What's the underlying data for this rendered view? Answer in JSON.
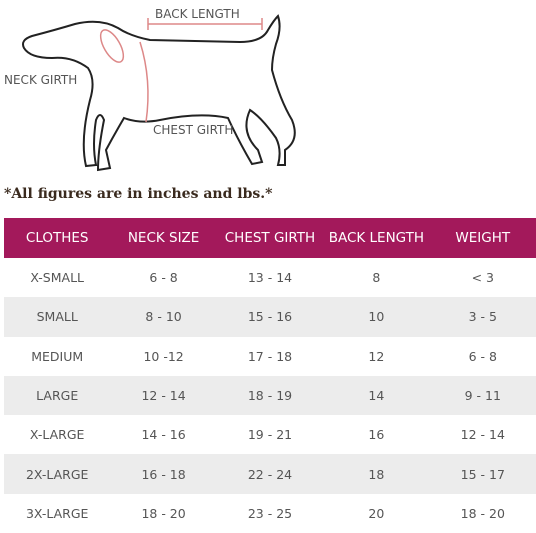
{
  "diagram": {
    "labels": {
      "back_length": "BACK LENGTH",
      "neck_girth": "NECK GIRTH",
      "chest_girth": "CHEST GIRTH"
    }
  },
  "note": "*All figures are in inches and lbs.*",
  "table": {
    "header": [
      "CLOTHES",
      "NECK SIZE",
      "CHEST GIRTH",
      "BACK LENGTH",
      "WEIGHT"
    ],
    "rows": [
      [
        "X-SMALL",
        "6 - 8",
        "13 - 14",
        "8",
        "< 3"
      ],
      [
        "SMALL",
        "8 - 10",
        "15 - 16",
        "10",
        "3 - 5"
      ],
      [
        "MEDIUM",
        "10 -12",
        "17 - 18",
        "12",
        "6 - 8"
      ],
      [
        "LARGE",
        "12 - 14",
        "18 - 19",
        "14",
        "9 - 11"
      ],
      [
        "X-LARGE",
        "14 - 16",
        "19 - 21",
        "16",
        "12 - 14"
      ],
      [
        "2X-LARGE",
        "16 - 18",
        "22 - 24",
        "18",
        "15 - 17"
      ],
      [
        "3X-LARGE",
        "18 - 20",
        "23 - 25",
        "20",
        "18 - 20"
      ]
    ]
  }
}
